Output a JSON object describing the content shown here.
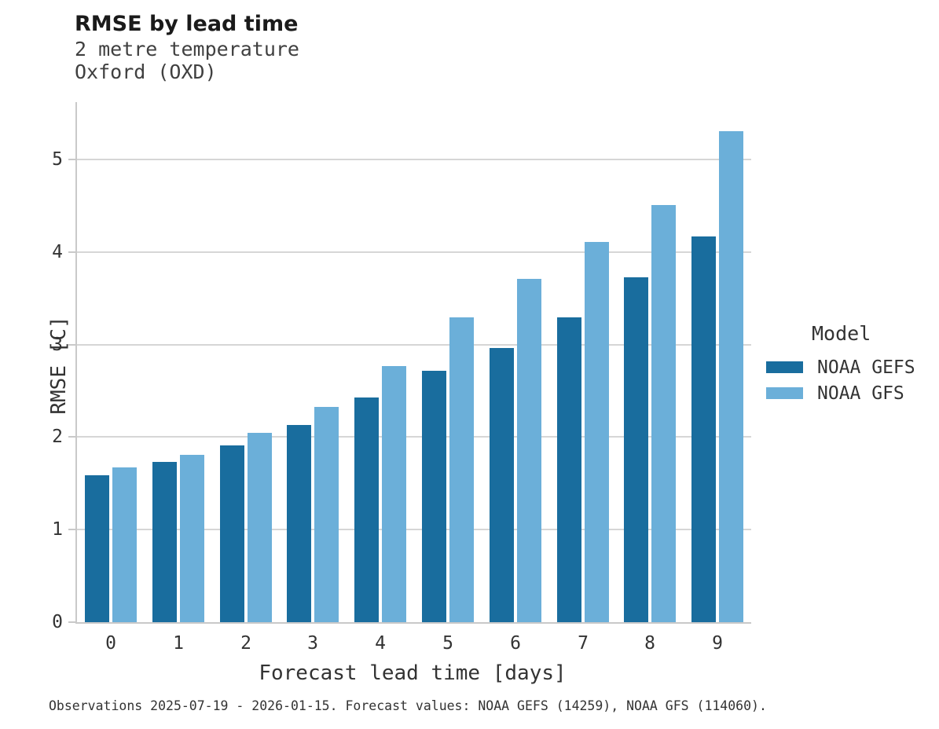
{
  "header": {
    "title": "RMSE by lead time",
    "subtitle_line1": "2 metre temperature",
    "subtitle_line2": "Oxford (OXD)"
  },
  "chart_data": {
    "type": "bar",
    "title": "RMSE by lead time",
    "subtitle": "2 metre temperature / Oxford (OXD)",
    "categories": [
      "0",
      "1",
      "2",
      "3",
      "4",
      "5",
      "6",
      "7",
      "8",
      "9"
    ],
    "series": [
      {
        "name": "NOAA GEFS",
        "color": "#196d9e",
        "values": [
          1.59,
          1.73,
          1.91,
          2.13,
          2.43,
          2.72,
          2.96,
          3.29,
          3.73,
          4.17
        ]
      },
      {
        "name": "NOAA GFS",
        "color": "#6bafd9",
        "values": [
          1.67,
          1.81,
          2.05,
          2.33,
          2.77,
          3.29,
          3.71,
          4.11,
          4.51,
          5.31
        ]
      }
    ],
    "xlabel": "Forecast lead time [days]",
    "ylabel": "RMSE [C]",
    "ylim": [
      0,
      5.62
    ],
    "yticks": [
      0,
      1,
      2,
      3,
      4,
      5
    ],
    "grid": "horizontal-only",
    "legend_position": "right",
    "legend_title": "Model"
  },
  "caption": "Observations 2025-07-19 - 2026-01-15. Forecast values: NOAA GEFS (14259), NOAA GFS (114060).",
  "colors": {
    "gefs_bar": "#196d9e",
    "gfs_bar": "#6bafd9",
    "gridline": "#d6d6d6",
    "axis_spine": "#c9c9c9",
    "title_text": "#1a1a1a",
    "body_text": "#333333"
  }
}
